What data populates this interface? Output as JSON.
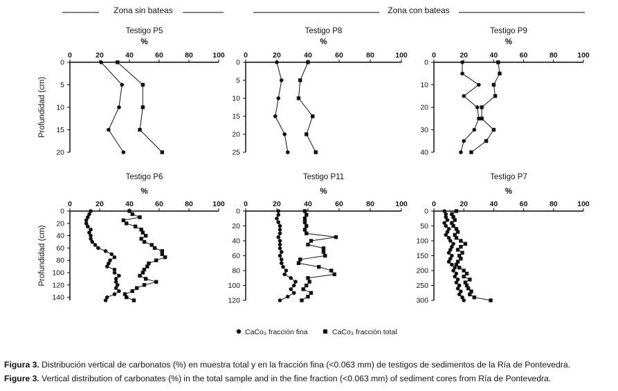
{
  "headers": {
    "left": "Zona sin bateas",
    "right": "Zona con bateas"
  },
  "legend": {
    "fine": "CaCo₃ fracción fina",
    "total": "CaCo₃ fracción total"
  },
  "captions": {
    "es_label": "Figura 3.",
    "es_text": " Distribución vertical de carbonatos (%) en muestra total y en la fracción fina (<0.063 mm) de testigos de sedimentos de la Ría de Pontevedra.",
    "en_label": "Figure 3.",
    "en_text": " Vertical distribution of carbonates (%) in the total sample and in the fine fraction (<0.063 mm) of sediment cores from Ría de Pontevedra."
  },
  "colors": {
    "series": "#111111",
    "axis": "#000000"
  },
  "chart_data": [
    {
      "id": "p5",
      "type": "line",
      "title": "Testigo P5",
      "xlabel": "%",
      "ylabel": "Profundidad (cm)",
      "xlim": [
        0,
        100
      ],
      "xticks": [
        0,
        20,
        40,
        60,
        80,
        100
      ],
      "ylim": [
        0,
        20
      ],
      "yticks": [
        0,
        5,
        10,
        15,
        20
      ],
      "series": [
        {
          "name": "CaCo₃ fracción fina",
          "marker": "circle",
          "points": [
            [
              21,
              0
            ],
            [
              35,
              5
            ],
            [
              33,
              10
            ],
            [
              26,
              15
            ],
            [
              36,
              20
            ]
          ]
        },
        {
          "name": "CaCo₃ fracción total",
          "marker": "square",
          "points": [
            [
              32,
              0
            ],
            [
              49,
              5
            ],
            [
              49,
              10
            ],
            [
              47,
              15
            ],
            [
              62,
              20
            ]
          ]
        }
      ]
    },
    {
      "id": "p8",
      "type": "line",
      "title": "Testigo P8",
      "xlabel": "%",
      "ylabel": "",
      "xlim": [
        0,
        100
      ],
      "xticks": [
        0,
        20,
        40,
        60,
        80,
        100
      ],
      "ylim": [
        0,
        25
      ],
      "yticks": [
        0,
        5,
        10,
        15,
        20,
        25
      ],
      "series": [
        {
          "name": "CaCo₃ fracción fina",
          "marker": "circle",
          "points": [
            [
              20,
              0
            ],
            [
              23,
              5
            ],
            [
              21,
              10
            ],
            [
              19,
              15
            ],
            [
              25,
              20
            ],
            [
              27,
              25
            ]
          ]
        },
        {
          "name": "CaCo₃ fracción total",
          "marker": "square",
          "points": [
            [
              40,
              0
            ],
            [
              35,
              5
            ],
            [
              34,
              10
            ],
            [
              43,
              15
            ],
            [
              39,
              20
            ],
            [
              45,
              25
            ]
          ]
        }
      ]
    },
    {
      "id": "p9",
      "type": "line",
      "title": "Testigo P9",
      "xlabel": "%",
      "ylabel": "",
      "xlim": [
        0,
        100
      ],
      "xticks": [
        0,
        20,
        40,
        60,
        80,
        100
      ],
      "ylim": [
        0,
        40
      ],
      "yticks": [
        0,
        10,
        20,
        30,
        40
      ],
      "series": [
        {
          "name": "CaCo₃ fracción fina",
          "marker": "circle",
          "points": [
            [
              19,
              0
            ],
            [
              19,
              5
            ],
            [
              30,
              10
            ],
            [
              20,
              15
            ],
            [
              29,
              20
            ],
            [
              30,
              25
            ],
            [
              27,
              30
            ],
            [
              20,
              35
            ],
            [
              18,
              40
            ]
          ]
        },
        {
          "name": "CaCo₃ fracción total",
          "marker": "square",
          "points": [
            [
              43,
              0
            ],
            [
              44,
              5
            ],
            [
              40,
              10
            ],
            [
              41,
              15
            ],
            [
              32,
              20
            ],
            [
              32,
              25
            ],
            [
              40,
              30
            ],
            [
              35,
              35
            ],
            [
              25,
              40
            ]
          ]
        }
      ]
    },
    {
      "id": "p6",
      "type": "line",
      "title": "Testigo P6",
      "xlabel": "%",
      "ylabel": "Profundidad (cm)",
      "xlim": [
        0,
        100
      ],
      "xticks": [
        0,
        20,
        40,
        60,
        80,
        100
      ],
      "ylim": [
        0,
        145
      ],
      "yticks": [
        0,
        20,
        40,
        60,
        80,
        100,
        120,
        140
      ],
      "series": [
        {
          "name": "CaCo₃ fracción fina",
          "marker": "circle",
          "points": [
            [
              14,
              0
            ],
            [
              13,
              5
            ],
            [
              12,
              10
            ],
            [
              11,
              15
            ],
            [
              11,
              20
            ],
            [
              12,
              25
            ],
            [
              14,
              30
            ],
            [
              13,
              35
            ],
            [
              14,
              40
            ],
            [
              14,
              45
            ],
            [
              15,
              50
            ],
            [
              17,
              55
            ],
            [
              19,
              60
            ],
            [
              24,
              65
            ],
            [
              28,
              70
            ],
            [
              30,
              75
            ],
            [
              27,
              80
            ],
            [
              26,
              85
            ],
            [
              25,
              90
            ],
            [
              30,
              95
            ],
            [
              30,
              100
            ],
            [
              33,
              105
            ],
            [
              31,
              110
            ],
            [
              31,
              115
            ],
            [
              32,
              120
            ],
            [
              31,
              125
            ],
            [
              33,
              130
            ],
            [
              30,
              135
            ],
            [
              25,
              140
            ],
            [
              24,
              145
            ]
          ]
        },
        {
          "name": "CaCo₃ fracción total",
          "marker": "square",
          "points": [
            [
              40,
              0
            ],
            [
              42,
              5
            ],
            [
              47,
              10
            ],
            [
              36,
              15
            ],
            [
              38,
              20
            ],
            [
              44,
              25
            ],
            [
              48,
              30
            ],
            [
              49,
              35
            ],
            [
              51,
              40
            ],
            [
              48,
              45
            ],
            [
              50,
              50
            ],
            [
              55,
              55
            ],
            [
              57,
              60
            ],
            [
              62,
              65
            ],
            [
              62,
              70
            ],
            [
              64,
              75
            ],
            [
              58,
              80
            ],
            [
              53,
              85
            ],
            [
              52,
              90
            ],
            [
              50,
              95
            ],
            [
              49,
              100
            ],
            [
              47,
              105
            ],
            [
              51,
              110
            ],
            [
              58,
              115
            ],
            [
              50,
              120
            ],
            [
              45,
              125
            ],
            [
              42,
              130
            ],
            [
              37,
              135
            ],
            [
              38,
              140
            ],
            [
              43,
              145
            ]
          ]
        }
      ]
    },
    {
      "id": "p11",
      "type": "line",
      "title": "Testigo P11",
      "xlabel": "%",
      "ylabel": "",
      "xlim": [
        0,
        100
      ],
      "xticks": [
        0,
        20,
        40,
        60,
        80,
        100
      ],
      "ylim": [
        0,
        120
      ],
      "yticks": [
        0,
        20,
        40,
        60,
        80,
        100,
        120
      ],
      "series": [
        {
          "name": "CaCo₃ fracción fina",
          "marker": "circle",
          "points": [
            [
              21,
              0
            ],
            [
              21,
              5
            ],
            [
              20,
              10
            ],
            [
              21,
              15
            ],
            [
              22,
              20
            ],
            [
              22,
              25
            ],
            [
              22,
              30
            ],
            [
              21,
              35
            ],
            [
              22,
              40
            ],
            [
              22,
              45
            ],
            [
              22,
              50
            ],
            [
              23,
              55
            ],
            [
              22,
              60
            ],
            [
              23,
              65
            ],
            [
              23,
              70
            ],
            [
              24,
              75
            ],
            [
              26,
              80
            ],
            [
              25,
              85
            ],
            [
              29,
              90
            ],
            [
              32,
              95
            ],
            [
              31,
              100
            ],
            [
              29,
              105
            ],
            [
              31,
              110
            ],
            [
              27,
              115
            ],
            [
              22,
              120
            ]
          ]
        },
        {
          "name": "CaCo₃ fracción total",
          "marker": "square",
          "points": [
            [
              38,
              0
            ],
            [
              39,
              5
            ],
            [
              38,
              10
            ],
            [
              38,
              15
            ],
            [
              39,
              20
            ],
            [
              38,
              25
            ],
            [
              39,
              30
            ],
            [
              58,
              35
            ],
            [
              42,
              40
            ],
            [
              40,
              45
            ],
            [
              50,
              50
            ],
            [
              50,
              55
            ],
            [
              51,
              60
            ],
            [
              35,
              65
            ],
            [
              34,
              70
            ],
            [
              47,
              75
            ],
            [
              55,
              80
            ],
            [
              57,
              85
            ],
            [
              40,
              90
            ],
            [
              41,
              95
            ],
            [
              39,
              100
            ],
            [
              37,
              105
            ],
            [
              42,
              110
            ],
            [
              40,
              115
            ],
            [
              36,
              120
            ]
          ]
        }
      ]
    },
    {
      "id": "p7",
      "type": "line",
      "title": "Testigo P7",
      "xlabel": "%",
      "ylabel": "",
      "xlim": [
        0,
        100
      ],
      "xticks": [
        0,
        20,
        40,
        60,
        80,
        100
      ],
      "ylim": [
        0,
        300
      ],
      "yticks": [
        0,
        50,
        100,
        150,
        200,
        250,
        300
      ],
      "series": [
        {
          "name": "CaCo₃ fracción fina",
          "marker": "circle",
          "points": [
            [
              7,
              0
            ],
            [
              8,
              10
            ],
            [
              8,
              20
            ],
            [
              9,
              30
            ],
            [
              7,
              40
            ],
            [
              8,
              50
            ],
            [
              10,
              60
            ],
            [
              9,
              70
            ],
            [
              8,
              80
            ],
            [
              10,
              90
            ],
            [
              11,
              100
            ],
            [
              13,
              110
            ],
            [
              12,
              120
            ],
            [
              11,
              130
            ],
            [
              10,
              140
            ],
            [
              12,
              150
            ],
            [
              11,
              160
            ],
            [
              10,
              170
            ],
            [
              12,
              180
            ],
            [
              14,
              190
            ],
            [
              13,
              200
            ],
            [
              15,
              210
            ],
            [
              14,
              220
            ],
            [
              16,
              230
            ],
            [
              15,
              240
            ],
            [
              17,
              250
            ],
            [
              16,
              260
            ],
            [
              18,
              270
            ],
            [
              17,
              280
            ],
            [
              19,
              290
            ],
            [
              20,
              300
            ]
          ]
        },
        {
          "name": "CaCo₃ fracción total",
          "marker": "square",
          "points": [
            [
              15,
              0
            ],
            [
              12,
              10
            ],
            [
              13,
              20
            ],
            [
              14,
              30
            ],
            [
              12,
              40
            ],
            [
              13,
              50
            ],
            [
              15,
              60
            ],
            [
              16,
              70
            ],
            [
              14,
              80
            ],
            [
              15,
              90
            ],
            [
              18,
              100
            ],
            [
              21,
              110
            ],
            [
              18,
              120
            ],
            [
              16,
              130
            ],
            [
              19,
              140
            ],
            [
              17,
              150
            ],
            [
              18,
              160
            ],
            [
              16,
              170
            ],
            [
              15,
              180
            ],
            [
              17,
              190
            ],
            [
              20,
              200
            ],
            [
              22,
              210
            ],
            [
              20,
              220
            ],
            [
              24,
              230
            ],
            [
              21,
              240
            ],
            [
              22,
              250
            ],
            [
              23,
              260
            ],
            [
              25,
              270
            ],
            [
              24,
              280
            ],
            [
              27,
              290
            ],
            [
              38,
              300
            ]
          ]
        }
      ]
    }
  ]
}
